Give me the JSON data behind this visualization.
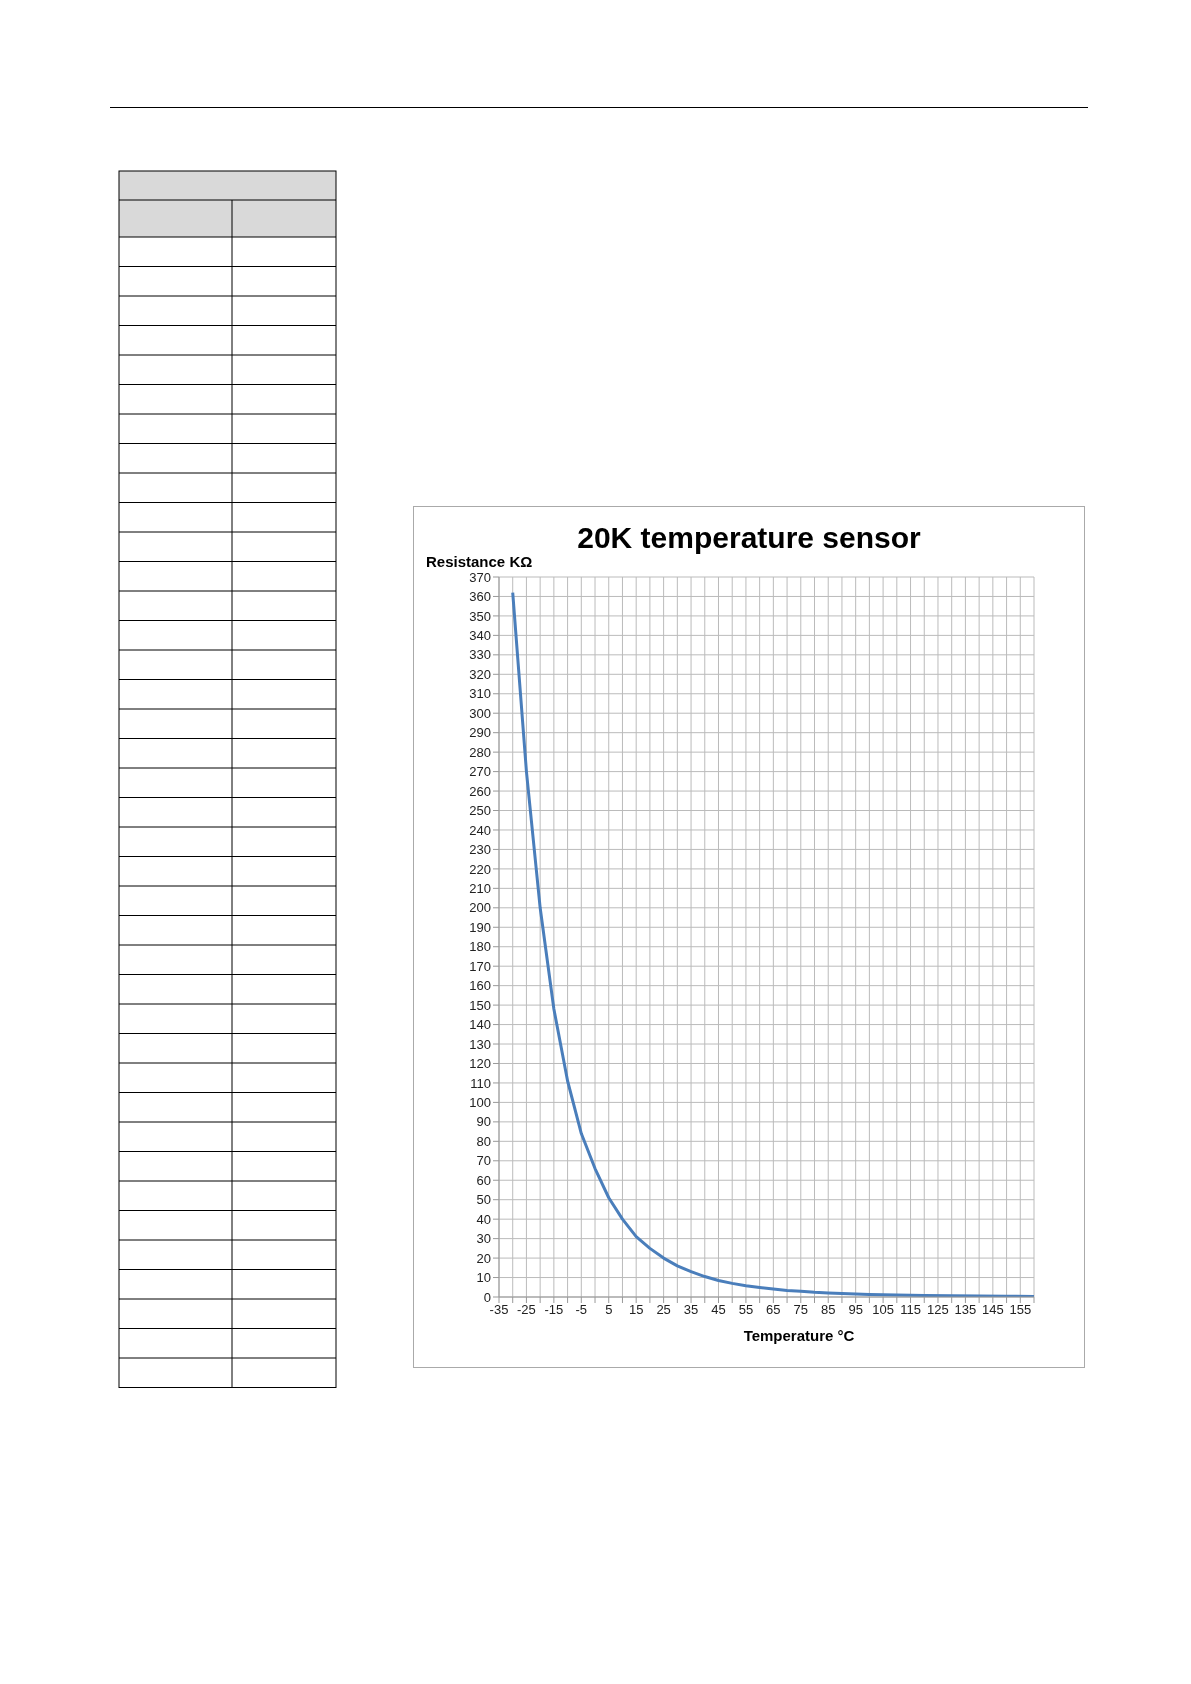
{
  "chart_data": {
    "type": "line",
    "title": "20K temperature sensor",
    "xlabel": "Temperature °C",
    "ylabel": "Resistance KΩ",
    "x": [
      -30,
      -25,
      -20,
      -15,
      -10,
      -5,
      0,
      5,
      10,
      15,
      20,
      25,
      30,
      35,
      40,
      45,
      50,
      55,
      60,
      65,
      70,
      75,
      80,
      85,
      90,
      95,
      100,
      110,
      120,
      130,
      140,
      150,
      160
    ],
    "series": [
      {
        "color": "#4a7ebb",
        "values": [
          362,
          270,
          200,
          148,
          111,
          84,
          66,
          51,
          40,
          31,
          25,
          20,
          16,
          13,
          10.5,
          8.5,
          7,
          5.8,
          4.9,
          4.1,
          3.4,
          2.9,
          2.4,
          2.1,
          1.8,
          1.5,
          1.3,
          1,
          0.8,
          0.6,
          0.5,
          0.4,
          0.3
        ]
      }
    ],
    "xlim": [
      -35,
      160
    ],
    "xticks": [
      -35,
      {
        "value": -30,
        "label": null
      },
      -25,
      {
        "value": -20,
        "label": null
      },
      -15,
      {
        "value": -10,
        "label": null
      },
      -5,
      {
        "value": 0,
        "label": null
      },
      5,
      {
        "value": 10,
        "label": null
      },
      15,
      {
        "value": 20,
        "label": null
      },
      25,
      {
        "value": 30,
        "label": null
      },
      35,
      {
        "value": 40,
        "label": null
      },
      45,
      {
        "value": 50,
        "label": null
      },
      55,
      {
        "value": 60,
        "label": null
      },
      65,
      {
        "value": 70,
        "label": null
      },
      75,
      {
        "value": 80,
        "label": null
      },
      85,
      {
        "value": 90,
        "label": null
      },
      95,
      {
        "value": 100,
        "label": null
      },
      105,
      {
        "value": 110,
        "label": null
      },
      115,
      {
        "value": 120,
        "label": null
      },
      125,
      {
        "value": 130,
        "label": null
      },
      135,
      {
        "value": 140,
        "label": null
      },
      145,
      {
        "value": 150,
        "label": null
      },
      155,
      {
        "value": 160,
        "label": null
      }
    ],
    "ylim": [
      0,
      370
    ],
    "yticks": [
      0,
      10,
      20,
      30,
      40,
      50,
      60,
      70,
      80,
      90,
      100,
      110,
      120,
      130,
      140,
      150,
      160,
      170,
      180,
      190,
      200,
      210,
      220,
      230,
      240,
      250,
      260,
      270,
      280,
      290,
      300,
      310,
      320,
      330,
      340,
      350,
      360,
      370
    ],
    "grid": true,
    "legend": false,
    "marker": "none",
    "line_style": "solid"
  }
}
